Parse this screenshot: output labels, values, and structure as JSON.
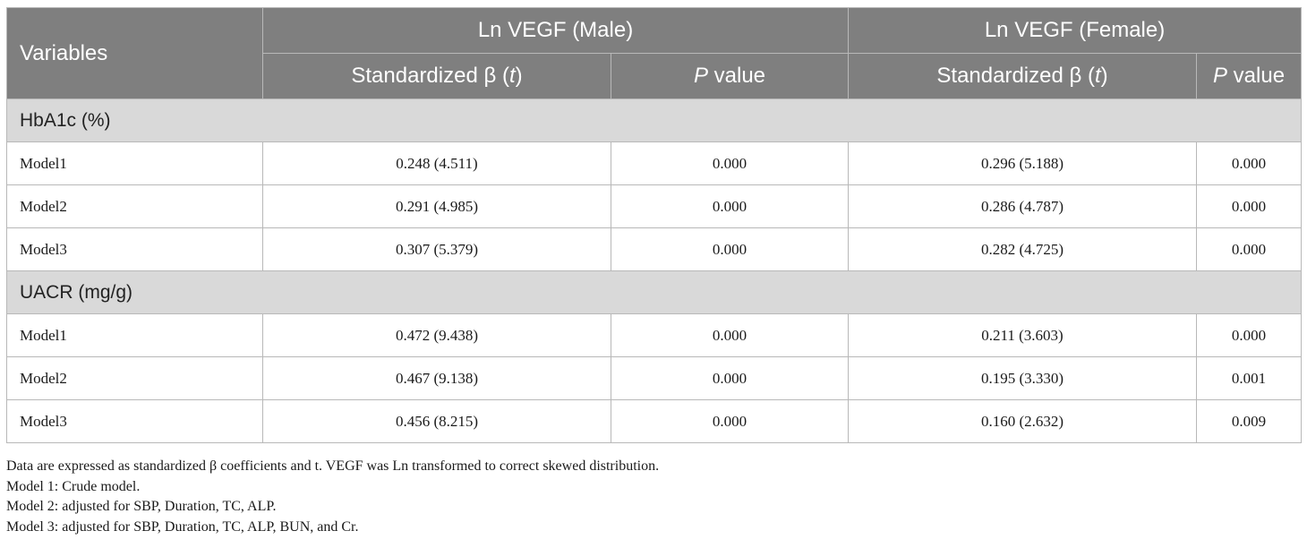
{
  "table": {
    "header": {
      "variables": "Variables",
      "group_male": "Ln VEGF (Male)",
      "group_female": "Ln VEGF (Female)",
      "beta_prefix": "Standardized β (",
      "beta_t": "t",
      "beta_suffix": ")",
      "p_letter": "P",
      "p_suffix": " value"
    },
    "sections": [
      {
        "title": "HbA1c (%)",
        "rows": [
          {
            "model": "Model1",
            "male_beta": "0.248 (4.511)",
            "male_p": "0.000",
            "female_beta": "0.296 (5.188)",
            "female_p": "0.000"
          },
          {
            "model": "Model2",
            "male_beta": "0.291 (4.985)",
            "male_p": "0.000",
            "female_beta": "0.286 (4.787)",
            "female_p": "0.000"
          },
          {
            "model": "Model3",
            "male_beta": "0.307 (5.379)",
            "male_p": "0.000",
            "female_beta": "0.282 (4.725)",
            "female_p": "0.000"
          }
        ]
      },
      {
        "title": "UACR (mg/g)",
        "rows": [
          {
            "model": "Model1",
            "male_beta": "0.472 (9.438)",
            "male_p": "0.000",
            "female_beta": "0.211 (3.603)",
            "female_p": "0.000"
          },
          {
            "model": "Model2",
            "male_beta": "0.467 (9.138)",
            "male_p": "0.000",
            "female_beta": "0.195 (3.330)",
            "female_p": "0.001"
          },
          {
            "model": "Model3",
            "male_beta": "0.456 (8.215)",
            "male_p": "0.000",
            "female_beta": "0.160 (2.632)",
            "female_p": "0.009"
          }
        ]
      }
    ]
  },
  "notes": [
    "Data are expressed as standardized β coefficients and t. VEGF was Ln transformed to correct skewed distribution.",
    "Model 1: Crude model.",
    "Model 2: adjusted for SBP, Duration, TC, ALP.",
    "Model 3: adjusted for SBP, Duration, TC, ALP, BUN, and Cr."
  ]
}
